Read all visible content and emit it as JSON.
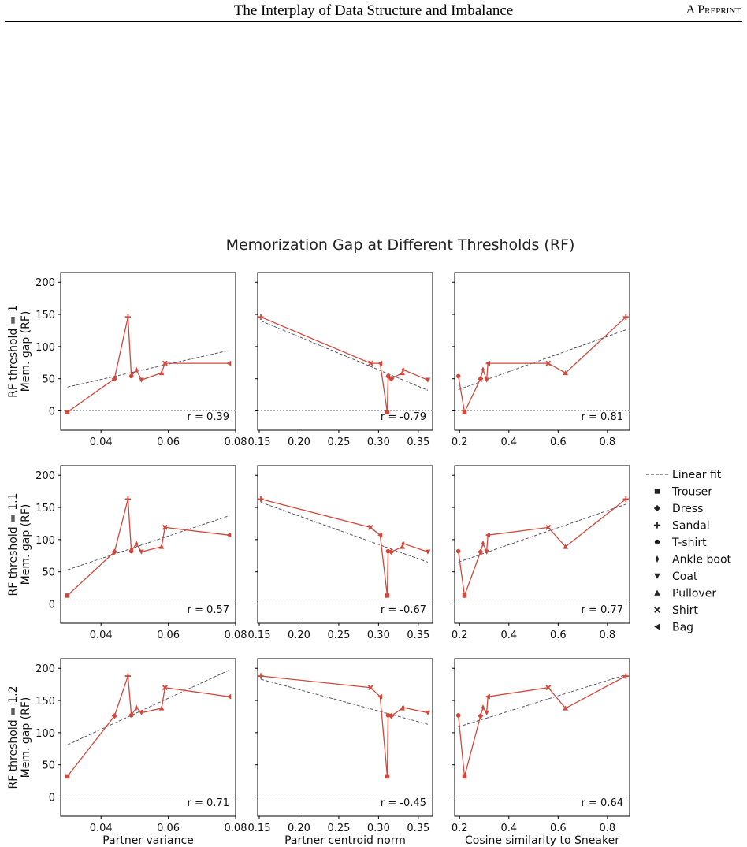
{
  "page_header": {
    "title": "The Interplay of Data Structure and Imbalance",
    "right": "A Preprint"
  },
  "figure_title": "Memorization Gap at Different Thresholds (RF)",
  "colors": {
    "series": "#d1493d",
    "fit": "#555566",
    "zero": "#aaaaaa"
  },
  "legend": [
    {
      "label": "Linear fit",
      "marker": "dash"
    },
    {
      "label": "Trouser",
      "marker": "square"
    },
    {
      "label": "Dress",
      "marker": "diamond"
    },
    {
      "label": "Sandal",
      "marker": "plus"
    },
    {
      "label": "T-shirt",
      "marker": "circle"
    },
    {
      "label": "Ankle boot",
      "marker": "thin-diamond"
    },
    {
      "label": "Coat",
      "marker": "triangle-down"
    },
    {
      "label": "Pullover",
      "marker": "triangle-up"
    },
    {
      "label": "Shirt",
      "marker": "x"
    },
    {
      "label": "Bag",
      "marker": "triangle-left"
    }
  ],
  "chart_data": {
    "type": "line",
    "layout": "3x3 grid",
    "title": "Memorization Gap at Different Thresholds (RF)",
    "ylim": [
      -30,
      215
    ],
    "yticks": [
      0,
      50,
      100,
      150,
      200
    ],
    "categories": [
      "Trouser",
      "Dress",
      "Sandal",
      "T-shirt",
      "Ankle boot",
      "Coat",
      "Pullover",
      "Shirt",
      "Bag"
    ],
    "columns": [
      {
        "xlabel": "Partner variance",
        "xlim": [
          0.028,
          0.08
        ],
        "xticks": [
          0.04,
          0.06,
          0.08
        ],
        "x": [
          0.03,
          0.044,
          0.048,
          0.049,
          0.0505,
          0.052,
          0.058,
          0.059,
          0.078
        ]
      },
      {
        "xlabel": "Partner centroid norm",
        "xlim": [
          0.148,
          0.368
        ],
        "xticks": [
          0.15,
          0.2,
          0.25,
          0.3,
          0.35
        ],
        "x": [
          0.311,
          0.316,
          0.152,
          0.312,
          0.331,
          0.362,
          0.33,
          0.29,
          0.302
        ]
      },
      {
        "xlabel": "Cosine similarity to Sneaker",
        "xlim": [
          0.18,
          0.89
        ],
        "xticks": [
          0.2,
          0.4,
          0.6,
          0.8
        ],
        "x": [
          0.22,
          0.285,
          0.875,
          0.195,
          0.295,
          0.31,
          0.63,
          0.56,
          0.315
        ]
      }
    ],
    "rows": [
      {
        "ylabel": "RF threshold = 1\nMem. gap (RF)",
        "values": [
          -2,
          50,
          146,
          54,
          64,
          48,
          59,
          74,
          74
        ],
        "r": [
          "r = 0.39",
          "r = -0.79",
          "r = 0.81"
        ],
        "fits": [
          [
            37,
            94
          ],
          [
            140,
            32
          ],
          [
            33,
            126
          ]
        ]
      },
      {
        "ylabel": "RF threshold = 1.1\nMem. gap (RF)",
        "values": [
          13,
          81,
          163,
          82,
          94,
          81,
          89,
          119,
          107
        ],
        "r": [
          "r = 0.57",
          "r = -0.67",
          "r = 0.77"
        ],
        "fits": [
          [
            53,
            137
          ],
          [
            158,
            65
          ],
          [
            65,
            155
          ]
        ]
      },
      {
        "ylabel": "RF threshold = 1.2\nMem. gap (RF)",
        "values": [
          32,
          126,
          188,
          127,
          139,
          131,
          138,
          170,
          156
        ],
        "r": [
          "r = 0.71",
          "r = -0.45",
          "r = 0.64"
        ],
        "fits": [
          [
            81,
            197
          ],
          [
            183,
            113
          ],
          [
            109,
            190
          ]
        ]
      }
    ]
  }
}
